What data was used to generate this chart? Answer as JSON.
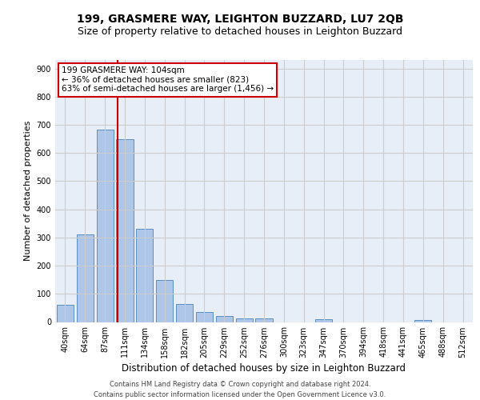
{
  "title_line1": "199, GRASMERE WAY, LEIGHTON BUZZARD, LU7 2QB",
  "title_line2": "Size of property relative to detached houses in Leighton Buzzard",
  "xlabel": "Distribution of detached houses by size in Leighton Buzzard",
  "ylabel": "Number of detached properties",
  "footer": "Contains HM Land Registry data © Crown copyright and database right 2024.\nContains public sector information licensed under the Open Government Licence v3.0.",
  "bar_labels": [
    "40sqm",
    "64sqm",
    "87sqm",
    "111sqm",
    "134sqm",
    "158sqm",
    "182sqm",
    "205sqm",
    "229sqm",
    "252sqm",
    "276sqm",
    "300sqm",
    "323sqm",
    "347sqm",
    "370sqm",
    "394sqm",
    "418sqm",
    "441sqm",
    "465sqm",
    "488sqm",
    "512sqm"
  ],
  "bar_values": [
    62,
    310,
    683,
    648,
    330,
    150,
    65,
    35,
    20,
    12,
    12,
    0,
    0,
    10,
    0,
    0,
    0,
    0,
    8,
    0,
    0
  ],
  "bar_color": "#aec6e8",
  "bar_edge_color": "#5a8fc2",
  "vline_x_index": 2.65,
  "annotation_line1": "199 GRASMERE WAY: 104sqm",
  "annotation_line2": "← 36% of detached houses are smaller (823)",
  "annotation_line3": "63% of semi-detached houses are larger (1,456) →",
  "annotation_box_color": "#ffffff",
  "annotation_box_edge_color": "#cc0000",
  "vline_color": "#cc0000",
  "ylim": [
    0,
    930
  ],
  "yticks": [
    0,
    100,
    200,
    300,
    400,
    500,
    600,
    700,
    800,
    900
  ],
  "grid_color": "#cccccc",
  "bg_color": "#e8eef7",
  "title_fontsize": 10,
  "subtitle_fontsize": 9,
  "footer_fontsize": 6,
  "ylabel_fontsize": 8,
  "xlabel_fontsize": 8.5,
  "tick_fontsize": 7,
  "annot_fontsize": 7.5
}
